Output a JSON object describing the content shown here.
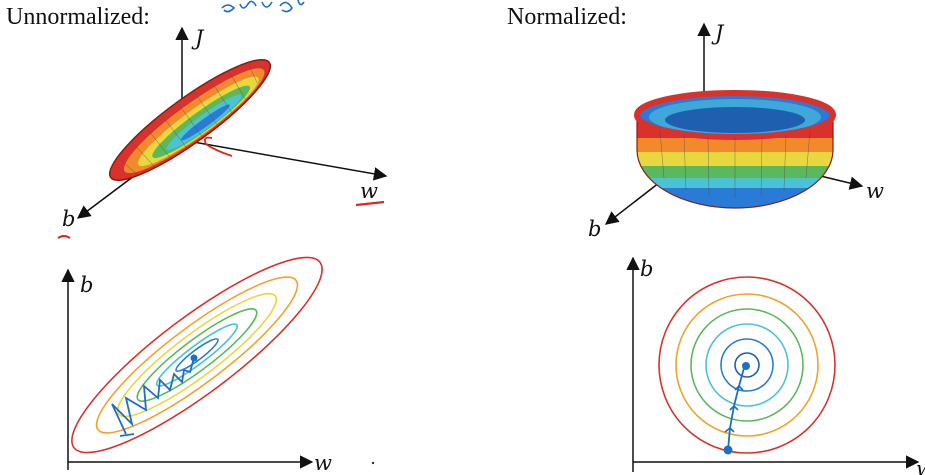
{
  "headings": {
    "left": "Unnormalized:",
    "right": "Normalized:"
  },
  "axis_labels": {
    "j": "J",
    "w": "w",
    "b": "b"
  },
  "colors": {
    "ink": "#111111",
    "handwriting_blue": "#1f6fc0",
    "handwriting_red": "#d92a1c",
    "contours": [
      "#d9312b",
      "#f2a12c",
      "#e8d840",
      "#5cb85c",
      "#4cc2d6",
      "#2a7bd6"
    ]
  },
  "panels": [
    {
      "id": "unnormalized-surface",
      "shape": "elongated bowl"
    },
    {
      "id": "normalized-surface",
      "shape": "round bowl"
    },
    {
      "id": "unnormalized-contours",
      "shape": "elongated ellipses",
      "path": "zig-zag gradient descent"
    },
    {
      "id": "normalized-contours",
      "shape": "concentric circles",
      "path": "straight gradient descent"
    }
  ]
}
